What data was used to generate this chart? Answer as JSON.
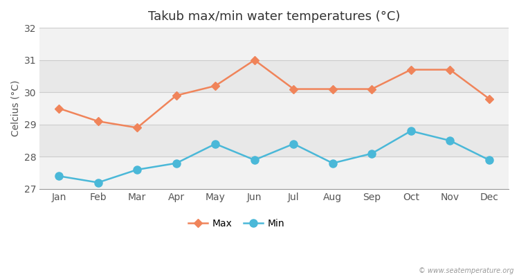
{
  "title": "Takub max/min water temperatures (°C)",
  "ylabel": "Celcius (°C)",
  "months": [
    "Jan",
    "Feb",
    "Mar",
    "Apr",
    "May",
    "Jun",
    "Jul",
    "Aug",
    "Sep",
    "Oct",
    "Nov",
    "Dec"
  ],
  "max_temps": [
    29.5,
    29.1,
    28.9,
    29.9,
    30.2,
    31.0,
    30.1,
    30.1,
    30.1,
    30.7,
    30.7,
    29.8
  ],
  "min_temps": [
    27.4,
    27.2,
    27.6,
    27.8,
    28.4,
    27.9,
    28.4,
    27.8,
    28.1,
    28.8,
    28.5,
    27.9
  ],
  "max_color": "#f0845a",
  "min_color": "#4ab8d8",
  "bg_color_outer": "#ffffff",
  "band_colors": [
    "#f2f2f2",
    "#e8e8e8"
  ],
  "yticks": [
    27,
    28,
    29,
    30,
    31,
    32
  ],
  "ylim": [
    27.0,
    32.0
  ],
  "marker_max": "D",
  "marker_min": "o",
  "marker_size_max": 6,
  "marker_size_min": 8,
  "line_width": 1.8,
  "title_fontsize": 13,
  "label_fontsize": 10,
  "tick_fontsize": 10,
  "watermark": "© www.seatemperature.org",
  "grid_color": "#cccccc",
  "spine_color": "#999999"
}
